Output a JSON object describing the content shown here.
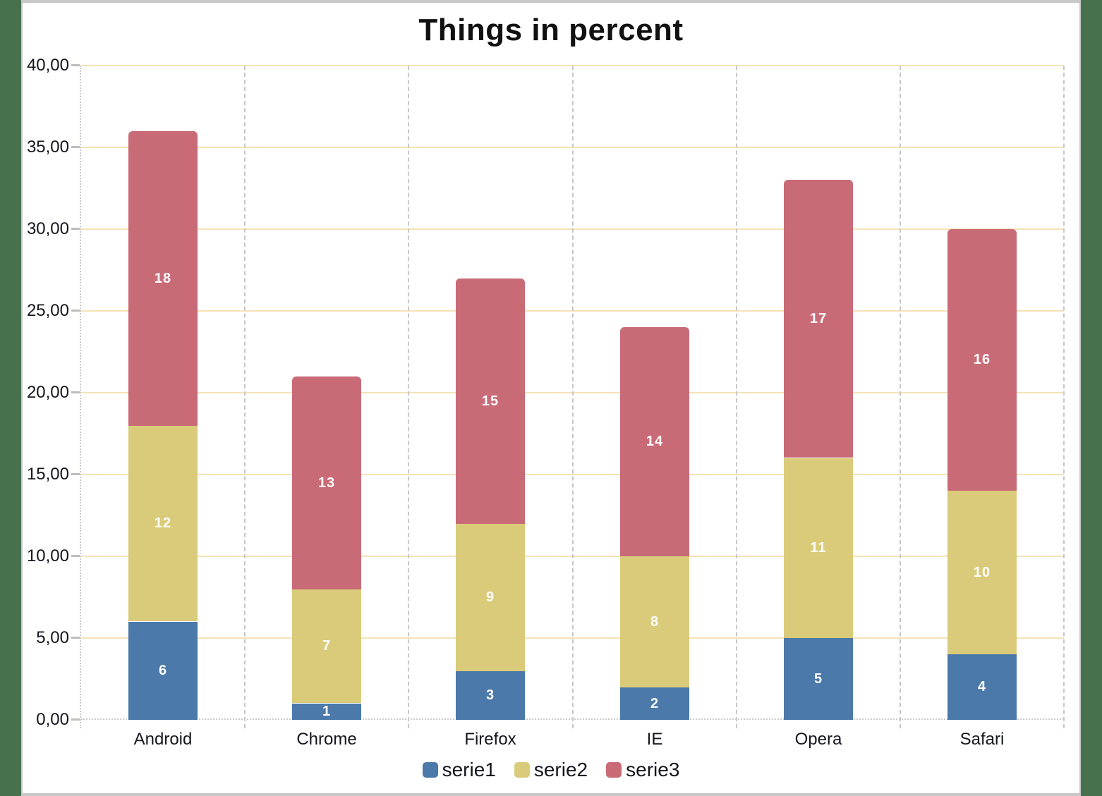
{
  "chart_data": {
    "type": "bar",
    "stacked": true,
    "title": "Things in percent",
    "categories": [
      "Android",
      "Chrome",
      "Firefox",
      "IE",
      "Opera",
      "Safari"
    ],
    "series": [
      {
        "name": "serie1",
        "color": "#4A79AA",
        "values": [
          6,
          1,
          3,
          2,
          5,
          4
        ]
      },
      {
        "name": "serie2",
        "color": "#D9CB79",
        "values": [
          12,
          7,
          9,
          8,
          11,
          10
        ]
      },
      {
        "name": "serie3",
        "color": "#C96A77",
        "values": [
          18,
          13,
          15,
          14,
          17,
          16
        ]
      }
    ],
    "totals": [
      36,
      21,
      27,
      24,
      33,
      30
    ],
    "ylim": [
      0,
      40
    ],
    "ytick_step": 5,
    "ytick_labels": [
      "0,00",
      "5,00",
      "10,00",
      "15,00",
      "20,00",
      "25,00",
      "30,00",
      "35,00",
      "40,00"
    ],
    "grid": {
      "horizontal": true,
      "vertical_dashed": true
    },
    "legend_position": "bottom",
    "bar_labels_shown": true,
    "colors": {
      "gridline": "#F5E2B6",
      "axis_dot": "#C9C9C9",
      "dash": "#C8C8C8",
      "tick": "#BDBDBD",
      "frame_green": "#47704D",
      "border_gray": "#C8C8C8",
      "text": "#15151F",
      "title_text": "#111111",
      "bar_label": "#FFFFFF"
    }
  }
}
